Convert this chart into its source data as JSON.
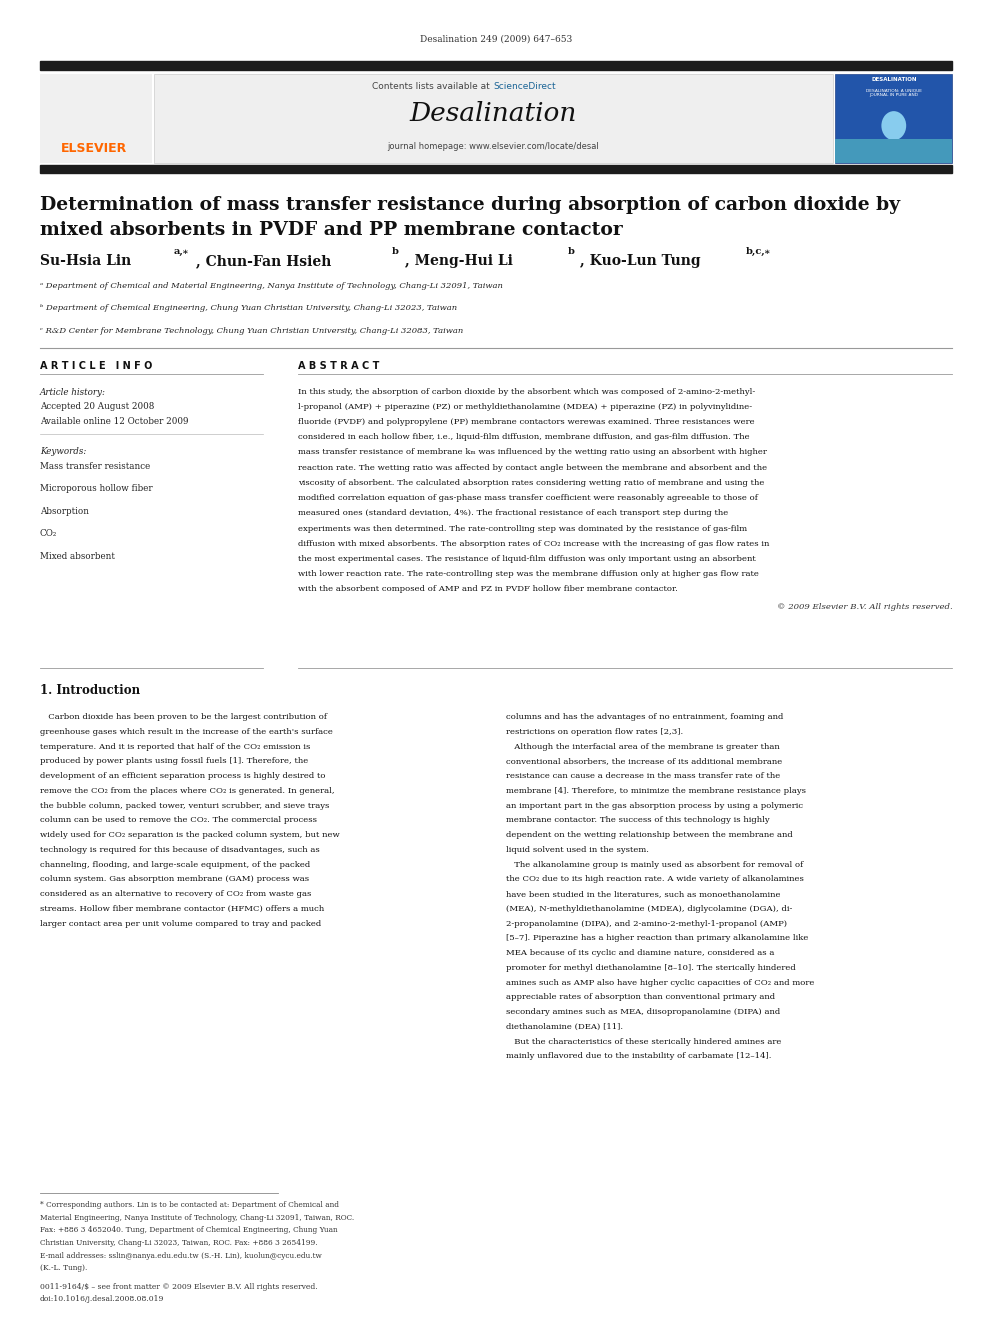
{
  "page_width": 9.92,
  "page_height": 13.23,
  "bg_color": "#ffffff",
  "journal_header": "Desalination 249 (2009) 647–653",
  "journal_name": "Desalination",
  "journal_url": "journal homepage: www.elsevier.com/locate/desal",
  "contents_text": "Contents lists available at ScienceDirect",
  "header_bg": "#efefef",
  "title_line1": "Determination of mass transfer resistance during absorption of carbon dioxide by",
  "title_line2": "mixed absorbents in PVDF and PP membrane contactor",
  "affil_a": "ᵃ Department of Chemical and Material Engineering, Nanya Institute of Technology, Chang-Li 32091, Taiwan",
  "affil_b": "ᵇ Department of Chemical Engineering, Chung Yuan Christian University, Chang-Li 32023, Taiwan",
  "affil_c": "ᶜ R&D Center for Membrane Technology, Chung Yuan Christian University, Chang-Li 32083, Taiwan",
  "article_info_title": "A R T I C L E   I N F O",
  "abstract_title": "A B S T R A C T",
  "article_history_label": "Article history:",
  "accepted_date": "Accepted 20 August 2008",
  "available_date": "Available online 12 October 2009",
  "keywords_label": "Keywords:",
  "keywords": [
    "Mass transfer resistance",
    "Microporous hollow fiber",
    "Absorption",
    "CO₂",
    "Mixed absorbent"
  ],
  "abstract_text": "In this study, the absorption of carbon dioxide by the absorbent which was composed of 2-amino-2-methyl-\nl-propanol (AMP) + piperazine (PZ) or methyldiethanolamine (MDEA) + piperazine (PZ) in polyvinylidine-\nfluoride (PVDF) and polypropylene (PP) membrane contactors werewas examined. Three resistances were\nconsidered in each hollow fiber, i.e., liquid-film diffusion, membrane diffusion, and gas-film diffusion. The\nmass transfer resistance of membrane kₘ was influenced by the wetting ratio using an absorbent with higher\nreaction rate. The wetting ratio was affected by contact angle between the membrane and absorbent and the\nviscosity of absorbent. The calculated absorption rates considering wetting ratio of membrane and using the\nmodified correlation equation of gas-phase mass transfer coefficient were reasonably agreeable to those of\nmeasured ones (standard deviation, 4%). The fractional resistance of each transport step during the\nexperiments was then determined. The rate-controlling step was dominated by the resistance of gas-film\ndiffusion with mixed absorbents. The absorption rates of CO₂ increase with the increasing of gas flow rates in\nthe most experimental cases. The resistance of liquid-film diffusion was only important using an absorbent\nwith lower reaction rate. The rate-controlling step was the membrane diffusion only at higher gas flow rate\nwith the absorbent composed of AMP and PZ in PVDF hollow fiber membrane contactor.",
  "copyright_text": "© 2009 Elsevier B.V. All rights reserved.",
  "section1_title": "1. Introduction",
  "intro_col1_lines": [
    "   Carbon dioxide has been proven to be the largest contribution of",
    "greenhouse gases which result in the increase of the earth's surface",
    "temperature. And it is reported that half of the CO₂ emission is",
    "produced by power plants using fossil fuels [1]. Therefore, the",
    "development of an efficient separation process is highly desired to",
    "remove the CO₂ from the places where CO₂ is generated. In general,",
    "the bubble column, packed tower, venturi scrubber, and sieve trays",
    "column can be used to remove the CO₂. The commercial process",
    "widely used for CO₂ separation is the packed column system, but new",
    "technology is required for this because of disadvantages, such as",
    "channeling, flooding, and large-scale equipment, of the packed",
    "column system. Gas absorption membrane (GAM) process was",
    "considered as an alternative to recovery of CO₂ from waste gas",
    "streams. Hollow fiber membrane contactor (HFMC) offers a much",
    "larger contact area per unit volume compared to tray and packed"
  ],
  "intro_col2_lines": [
    "columns and has the advantages of no entrainment, foaming and",
    "restrictions on operation flow rates [2,3].",
    "   Although the interfacial area of the membrane is greater than",
    "conventional absorbers, the increase of its additional membrane",
    "resistance can cause a decrease in the mass transfer rate of the",
    "membrane [4]. Therefore, to minimize the membrane resistance plays",
    "an important part in the gas absorption process by using a polymeric",
    "membrane contactor. The success of this technology is highly",
    "dependent on the wetting relationship between the membrane and",
    "liquid solvent used in the system.",
    "   The alkanolamine group is mainly used as absorbent for removal of",
    "the CO₂ due to its high reaction rate. A wide variety of alkanolamines",
    "have been studied in the literatures, such as monoethanolamine",
    "(MEA), N-methyldiethanolamine (MDEA), diglycolamine (DGA), di-",
    "2-propanolamine (DIPA), and 2-amino-2-methyl-1-propanol (AMP)",
    "[5–7]. Piperazine has a higher reaction than primary alkanolamine like",
    "MEA because of its cyclic and diamine nature, considered as a",
    "promoter for methyl diethanolamine [8–10]. The sterically hindered",
    "amines such as AMP also have higher cyclic capacities of CO₂ and more",
    "appreciable rates of absorption than conventional primary and",
    "secondary amines such as MEA, diisopropanolamine (DIPA) and",
    "diethanolamine (DEA) [11].",
    "   But the characteristics of these sterically hindered amines are",
    "mainly unflavored due to the instability of carbamate [12–14]."
  ],
  "footnote_sep_text": "* Corresponding authors. Lin is to be contacted at: Department of Chemical and Material Engineering, Nanya Institute of Technology, Chang-Li 32091, Taiwan, ROC. Fax: +886 3 4652040. Tung, Department of Chemical Engineering, Chung Yuan Christian University, Chang-Li 32023, Taiwan, ROC. Fax: +886 3 2654199.",
  "footnote2": "E-mail addresses: sslin@nanya.edu.edu.tw (S.-H. Lin), kuolun@cycu.edu.tw (K.-L. Tung).",
  "footer_text": "0011-9164/$ – see front matter © 2009 Elsevier B.V. All rights reserved.",
  "footer_doi": "doi:10.1016/j.desal.2008.08.019",
  "dark_bar_color": "#1c1c1c",
  "elsevier_orange": "#FF6600",
  "link_blue": "#1a6496"
}
